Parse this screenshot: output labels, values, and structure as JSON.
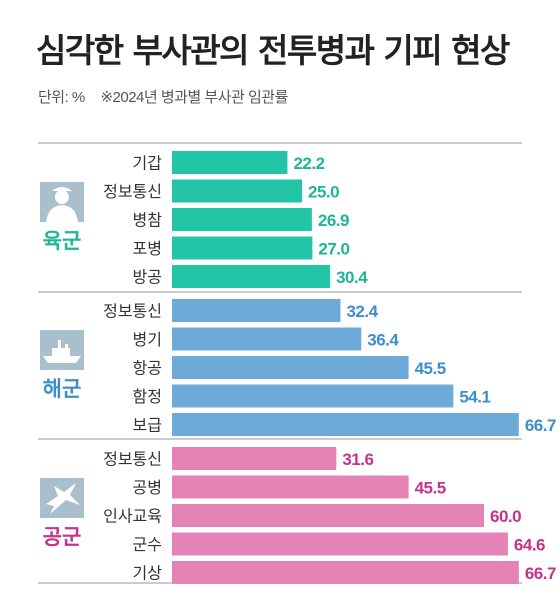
{
  "title": "심각한 부사관의 전투병과 기피 현상",
  "unit_label": "단위: %",
  "note": "※2024년 병과별 부사관 임관률",
  "colors": {
    "army": "#22c6a6",
    "navy": "#6eaad8",
    "airforce": "#e483b5",
    "army_text": "#1fb59a",
    "navy_text": "#3d8fcc",
    "airforce_text": "#c2358a",
    "icon_bg": "#a9bfcc",
    "divider": "#9a9a9a"
  },
  "chart_data": {
    "type": "bar",
    "orientation": "horizontal",
    "title": "심각한 부사관의 전투병과 기피 현상",
    "unit": "%",
    "groups": [
      {
        "name": "육군",
        "icon": "soldier-icon",
        "color_key": "army",
        "categories": [
          "기갑",
          "정보통신",
          "병참",
          "포병",
          "방공"
        ],
        "values": [
          22.2,
          25.0,
          26.9,
          27.0,
          30.4
        ],
        "labels": [
          "22.2",
          "25.0",
          "26.9",
          "27.0",
          "30.4"
        ]
      },
      {
        "name": "해군",
        "icon": "warship-icon",
        "color_key": "navy",
        "categories": [
          "정보통신",
          "병기",
          "항공",
          "함정",
          "보급"
        ],
        "values": [
          32.4,
          36.4,
          45.5,
          54.1,
          66.7
        ],
        "labels": [
          "32.4",
          "36.4",
          "45.5",
          "54.1",
          "66.7"
        ]
      },
      {
        "name": "공군",
        "icon": "fighter-jet-icon",
        "color_key": "airforce",
        "categories": [
          "정보통신",
          "공병",
          "인사교육",
          "군수",
          "기상"
        ],
        "values": [
          31.6,
          45.5,
          60.0,
          64.6,
          66.7
        ],
        "labels": [
          "31.6",
          "45.5",
          "60.0",
          "64.6",
          "66.7"
        ]
      }
    ]
  }
}
